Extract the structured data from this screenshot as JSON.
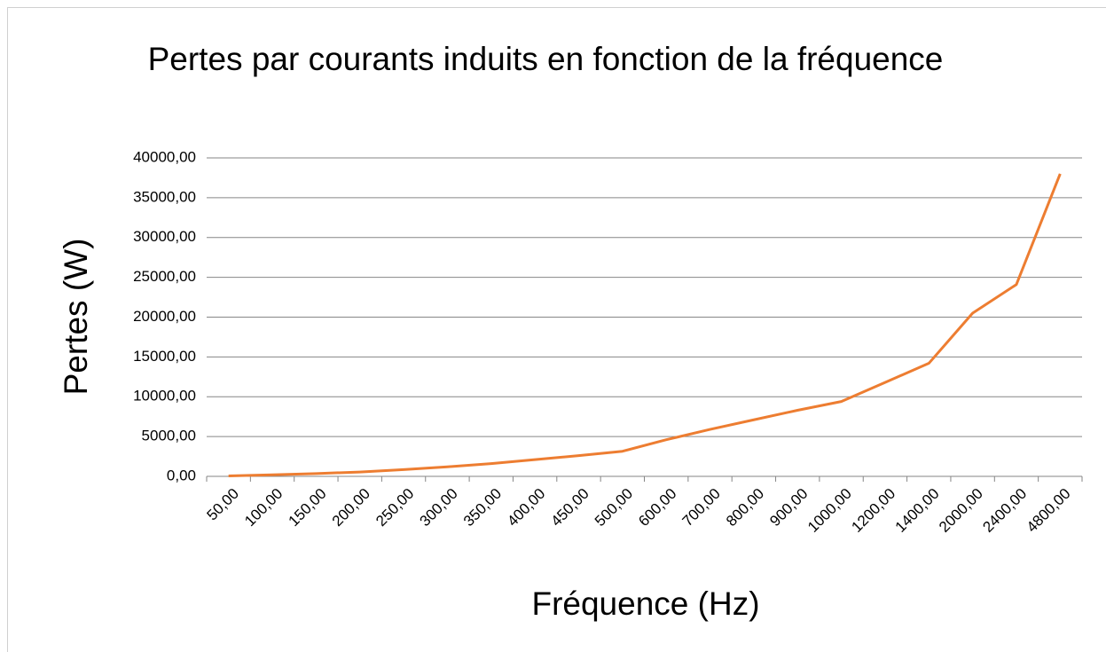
{
  "chart_data": {
    "type": "line",
    "title": "Pertes par courants induits en fonction de la fréquence",
    "x_label": "Fréquence (Hz)",
    "y_label": "Pertes (W)",
    "categories": [
      "50,00",
      "100,00",
      "150,00",
      "200,00",
      "250,00",
      "300,00",
      "350,00",
      "400,00",
      "450,00",
      "500,00",
      "600,00",
      "700,00",
      "800,00",
      "900,00",
      "1000,00",
      "1200,00",
      "1400,00",
      "2000,00",
      "2400,00",
      "4800,00"
    ],
    "series": [
      {
        "name": "Pertes",
        "color": "#ed7d31",
        "values": [
          50,
          200,
          350,
          550,
          850,
          1200,
          1600,
          2100,
          2600,
          3150,
          4600,
          5900,
          7100,
          8300,
          9400,
          11800,
          14200,
          20500,
          24100,
          38000
        ]
      }
    ],
    "ylim": [
      0,
      40000
    ],
    "yticks": [
      {
        "value": 0,
        "label": "0,00"
      },
      {
        "value": 5000,
        "label": "5000,00"
      },
      {
        "value": 10000,
        "label": "10000,00"
      },
      {
        "value": 15000,
        "label": "15000,00"
      },
      {
        "value": 20000,
        "label": "20000,00"
      },
      {
        "value": 25000,
        "label": "25000,00"
      },
      {
        "value": 30000,
        "label": "30000,00"
      },
      {
        "value": 35000,
        "label": "35000,00"
      },
      {
        "value": 40000,
        "label": "40000,00"
      }
    ],
    "grid": true
  }
}
